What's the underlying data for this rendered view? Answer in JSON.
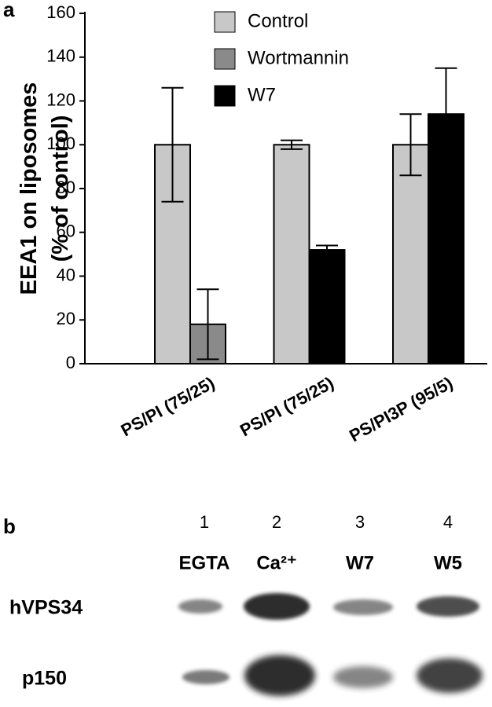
{
  "panel_a_label": "a",
  "chart_data": {
    "type": "bar",
    "ylabel": [
      "EEA1 on liposomes",
      "(% of control)"
    ],
    "categories": [
      "PS/PI (75/25)",
      "PS/PI (75/25)",
      "PS/PI3P (95/5)"
    ],
    "series": [
      {
        "name": "Control",
        "color": "#c8c8c8",
        "values": [
          100,
          100,
          100
        ],
        "errors": [
          26,
          2,
          14
        ]
      },
      {
        "name": "Wortmannin",
        "color": "#8a8a8a",
        "values": [
          18,
          null,
          null
        ],
        "errors": [
          16,
          null,
          null
        ]
      },
      {
        "name": "W7",
        "color": "#000000",
        "values": [
          null,
          52,
          114
        ],
        "errors": [
          null,
          2,
          21
        ]
      }
    ],
    "ylim": [
      0,
      160
    ],
    "yticks": [
      0,
      20,
      40,
      60,
      80,
      100,
      120,
      140,
      160
    ],
    "grid": false,
    "legend": "top-right"
  },
  "panel_b": {
    "label": "b",
    "lanes": [
      {
        "number": "1",
        "label": "EGTA"
      },
      {
        "number": "2",
        "label": "Ca²⁺"
      },
      {
        "number": "3",
        "label": "W7"
      },
      {
        "number": "4",
        "label": "W5"
      }
    ],
    "rows": [
      "hVPS34",
      "p150"
    ]
  }
}
